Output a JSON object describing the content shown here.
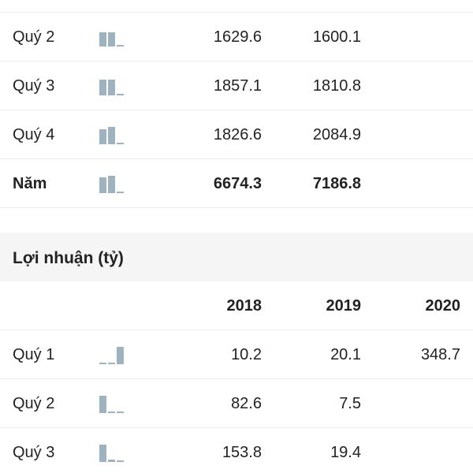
{
  "revenue": {
    "rows": [
      {
        "label": "Quý 2",
        "values": [
          "1629.6",
          "1600.1",
          ""
        ],
        "spark": [
          0.8,
          0.8,
          0.0
        ]
      },
      {
        "label": "Quý 3",
        "values": [
          "1857.1",
          "1810.8",
          ""
        ],
        "spark": [
          0.9,
          0.9,
          0.0
        ]
      },
      {
        "label": "Quý 4",
        "values": [
          "1826.6",
          "2084.9",
          ""
        ],
        "spark": [
          0.88,
          1.0,
          0.0
        ]
      },
      {
        "label": "Năm",
        "values": [
          "6674.3",
          "7186.8",
          ""
        ],
        "spark": [
          0.93,
          1.0,
          0.0
        ]
      }
    ]
  },
  "profit": {
    "title": "Lợi nhuận (tỷ)",
    "years": [
      "2018",
      "2019",
      "2020"
    ],
    "rows": [
      {
        "label": "Quý 1",
        "values": [
          "10.2",
          "20.1",
          "348.7"
        ],
        "spark": [
          0.03,
          0.06,
          1.0
        ]
      },
      {
        "label": "Quý 2",
        "values": [
          "82.6",
          "7.5",
          ""
        ],
        "spark": [
          1.0,
          0.09,
          0.0
        ]
      },
      {
        "label": "Quý 3",
        "values": [
          "153.8",
          "19.4",
          ""
        ],
        "spark": [
          1.0,
          0.13,
          0.0
        ]
      }
    ]
  },
  "colors": {
    "spark_bar": "#9eb2c0",
    "section_bg": "#f5f5f5",
    "divider": "#ececec"
  }
}
